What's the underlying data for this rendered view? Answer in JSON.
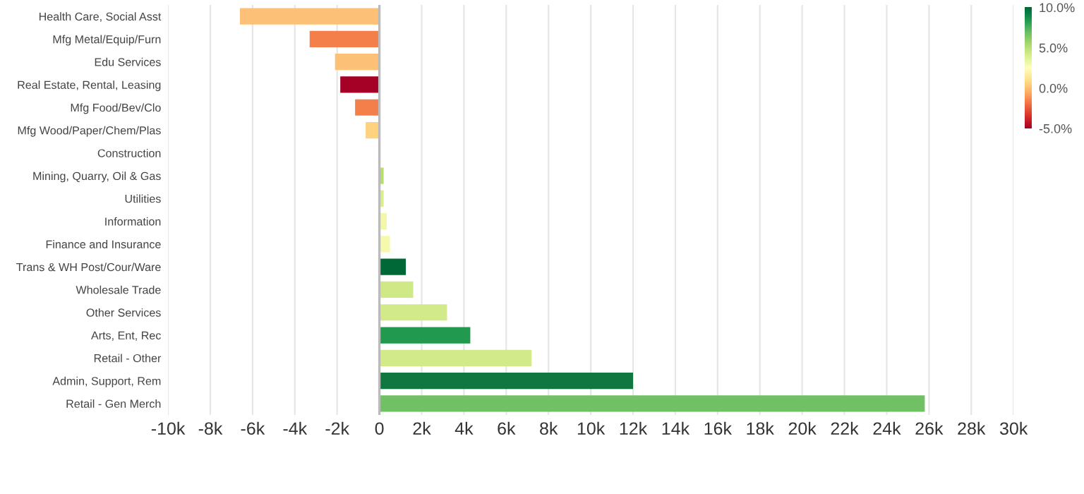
{
  "chart_data": {
    "type": "bar",
    "orientation": "horizontal",
    "categories": [
      "Health Care, Social Asst",
      "Mfg Metal/Equip/Furn",
      "Edu Services",
      "Real Estate, Rental, Leasing",
      "Mfg Food/Bev/Clo",
      "Mfg Wood/Paper/Chem/Plas",
      "Construction",
      "Mining, Quarry, Oil & Gas",
      "Utilities",
      "Information",
      "Finance and Insurance",
      "Trans & WH Post/Cour/Ware",
      "Wholesale Trade",
      "Other Services",
      "Arts, Ent, Rec",
      "Retail - Other",
      "Admin, Support, Rem",
      "Retail - Gen Merch"
    ],
    "values": [
      -6600,
      -3300,
      -2100,
      -1850,
      -1150,
      -650,
      50,
      200,
      200,
      350,
      500,
      1250,
      1600,
      3200,
      4300,
      7200,
      12000,
      25800
    ],
    "colors": [
      "#fdc077",
      "#f47f4a",
      "#fdc077",
      "#a50026",
      "#f47f4a",
      "#fed27f",
      "#fefec0",
      "#b7df6e",
      "#d9ef8b",
      "#f2f8a8",
      "#f4f9ac",
      "#006837",
      "#cfe986",
      "#d2ea8a",
      "#219a4f",
      "#d2ea8a",
      "#0f773f",
      "#70c163"
    ],
    "xlim": [
      -10000,
      30000
    ],
    "xticks": [
      {
        "value": -10000,
        "label": "-10k"
      },
      {
        "value": -8000,
        "label": "-8k"
      },
      {
        "value": -6000,
        "label": "-6k"
      },
      {
        "value": -4000,
        "label": "-4k"
      },
      {
        "value": -2000,
        "label": "-2k"
      },
      0,
      {
        "value": 2000,
        "label": "2k"
      },
      {
        "value": 4000,
        "label": "4k"
      },
      {
        "value": 6000,
        "label": "6k"
      },
      {
        "value": 8000,
        "label": "8k"
      },
      {
        "value": 10000,
        "label": "10k"
      },
      {
        "value": 12000,
        "label": "12k"
      },
      {
        "value": 14000,
        "label": "14k"
      },
      {
        "value": 16000,
        "label": "16k"
      },
      {
        "value": 18000,
        "label": "18k"
      },
      {
        "value": 20000,
        "label": "20k"
      },
      {
        "value": 22000,
        "label": "22k"
      },
      {
        "value": 24000,
        "label": "24k"
      },
      {
        "value": 26000,
        "label": "26k"
      },
      {
        "value": 28000,
        "label": "28k"
      },
      {
        "value": 30000,
        "label": "30k"
      }
    ],
    "clim": [
      -5,
      10
    ],
    "cticks": [
      {
        "value": 10,
        "label": "10.0%"
      },
      {
        "value": 5,
        "label": "5.0%"
      },
      {
        "value": 0,
        "label": "0.0%"
      },
      {
        "value": -5,
        "label": "-5.0%"
      }
    ],
    "ref_lines": [
      {
        "axis": "x",
        "value": 0,
        "color": "#bbbbbb"
      }
    ],
    "grid": "x",
    "legend": false
  }
}
